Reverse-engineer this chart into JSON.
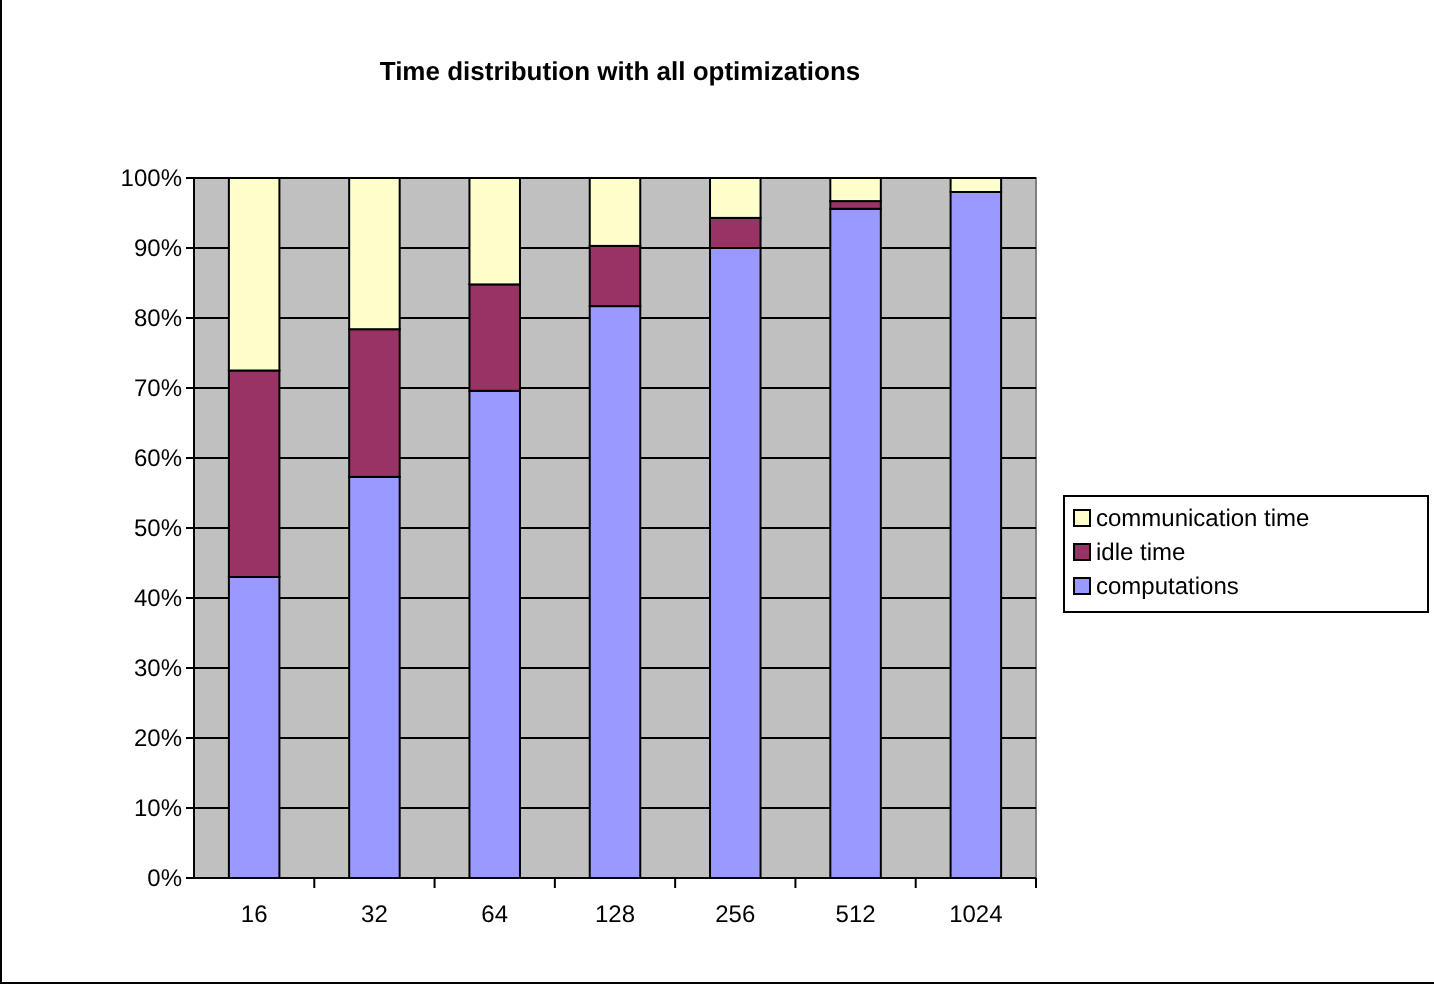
{
  "chart_data": {
    "type": "bar",
    "title": "Time distribution with all optimizations",
    "stacked": true,
    "categories": [
      "16",
      "32",
      "64",
      "128",
      "256",
      "512",
      "1024"
    ],
    "series": [
      {
        "name": "computations",
        "color": "#9999ff",
        "values": [
          43,
          57.3,
          69.6,
          81.7,
          90,
          95.6,
          98
        ]
      },
      {
        "name": "idle time",
        "color": "#993366",
        "values": [
          29.5,
          21.1,
          15.2,
          8.6,
          4.3,
          1.1,
          0
        ]
      },
      {
        "name": "communication time",
        "color": "#ffffcc",
        "values": [
          27.5,
          21.6,
          15.2,
          9.7,
          5.7,
          3.3,
          2
        ]
      }
    ],
    "ylim": [
      0,
      100
    ],
    "yticks": [
      {
        "value": 0,
        "label": "0%"
      },
      {
        "value": 10,
        "label": "10%"
      },
      {
        "value": 20,
        "label": "20%"
      },
      {
        "value": 30,
        "label": "30%"
      },
      {
        "value": 40,
        "label": "40%"
      },
      {
        "value": 50,
        "label": "50%"
      },
      {
        "value": 60,
        "label": "60%"
      },
      {
        "value": 70,
        "label": "70%"
      },
      {
        "value": 80,
        "label": "80%"
      },
      {
        "value": 90,
        "label": "90%"
      },
      {
        "value": 100,
        "label": "100%"
      }
    ],
    "grid": "y",
    "legend": "right"
  }
}
